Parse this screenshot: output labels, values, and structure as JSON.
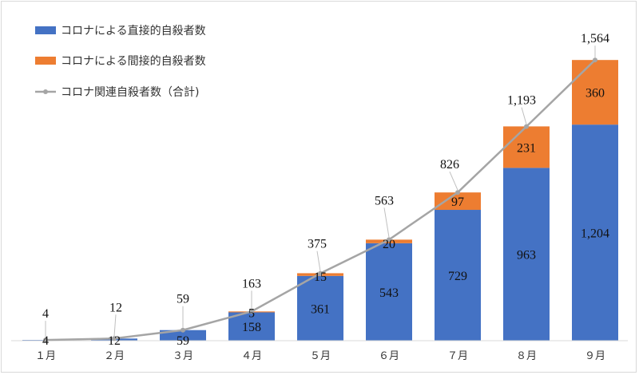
{
  "chart_data": {
    "type": "bar",
    "stacked": true,
    "categories": [
      "１月",
      "２月",
      "３月",
      "４月",
      "５月",
      "６月",
      "７月",
      "８月",
      "９月"
    ],
    "series": [
      {
        "name": "コロナによる直接的自殺者数",
        "kind": "bar",
        "color": "#4472c4",
        "values": [
          4,
          12,
          59,
          158,
          361,
          543,
          729,
          963,
          1204
        ],
        "labels": [
          "4",
          "12",
          "59",
          "158",
          "361",
          "543",
          "729",
          "963",
          "1,204"
        ]
      },
      {
        "name": "コロナによる間接的自殺者数",
        "kind": "bar",
        "color": "#ed7d31",
        "values": [
          0,
          0,
          0,
          5,
          15,
          20,
          97,
          231,
          360
        ],
        "labels": [
          "",
          "",
          "",
          "5",
          "15",
          "20",
          "97",
          "231",
          "360"
        ]
      },
      {
        "name": "コロナ関連自殺者数（合計)",
        "kind": "line",
        "color": "#a5a5a5",
        "values": [
          4,
          12,
          59,
          163,
          375,
          563,
          826,
          1193,
          1564
        ],
        "labels": [
          "4",
          "12",
          "59",
          "163",
          "375",
          "563",
          "826",
          "1,193",
          "1,564"
        ]
      }
    ],
    "ylim": [
      0,
      1600
    ],
    "grid": false,
    "legend": "top-left",
    "title": "",
    "xlabel": "",
    "ylabel": ""
  }
}
